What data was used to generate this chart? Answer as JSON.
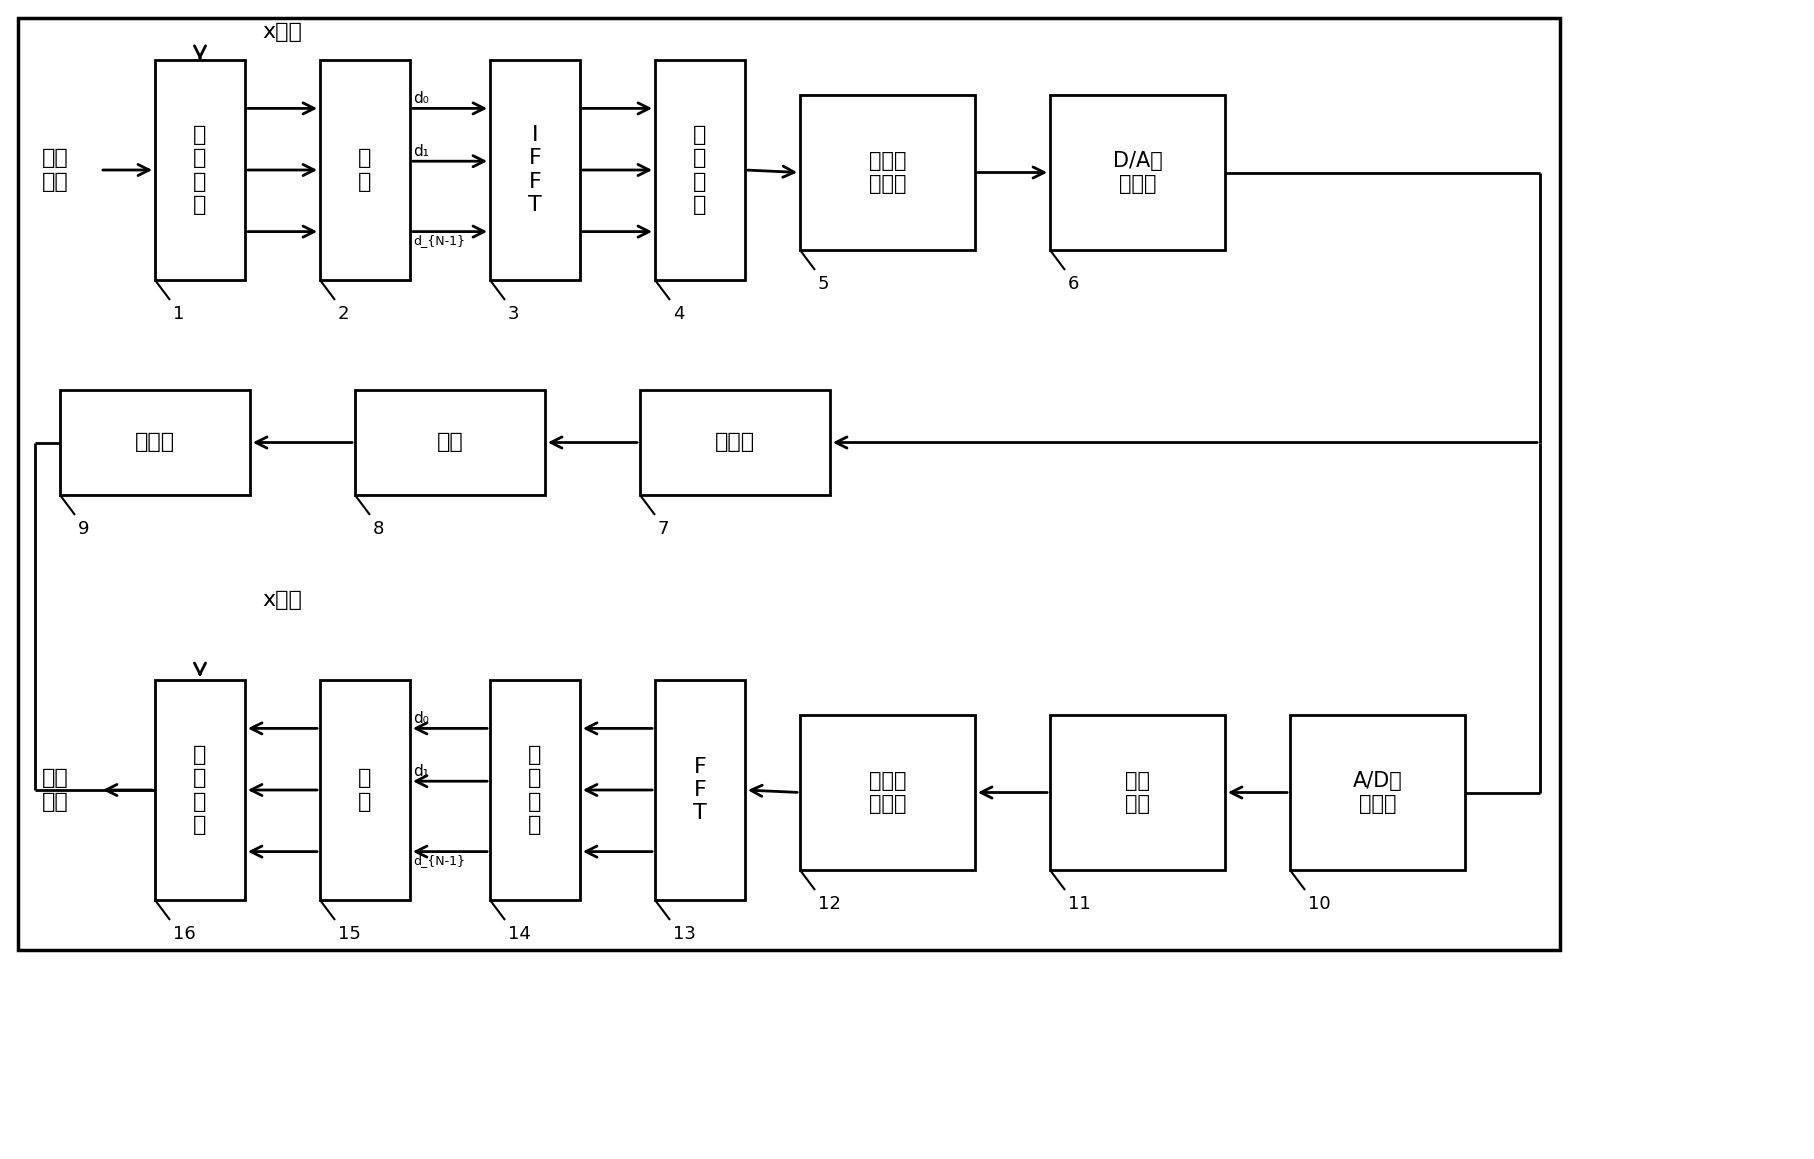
{
  "bg_color": "#ffffff",
  "lc": "#000000",
  "tc": "#000000",
  "lw": 2.0,
  "arrow_ms": 18,
  "font_size_box": 15,
  "font_size_label": 14,
  "font_size_num": 13,
  "font_size_d": 11,
  "top_brace_label": "x比特",
  "bot_brace_label": "x比特",
  "input_label": "输入\n数据",
  "output_label": "输出\n数据",
  "boxes": {
    "b1": {
      "label": "串并转换",
      "num": "1"
    },
    "b2": {
      "label": "映射",
      "num": "2"
    },
    "b3": {
      "label": "IFFT",
      "num": "3"
    },
    "b4": {
      "label": "并串转换",
      "num": "4"
    },
    "b5": {
      "label": "添加保护时隙",
      "num": "5"
    },
    "b6": {
      "label": "D/A低通滤波",
      "num": "6"
    },
    "b7": {
      "label": "上变频",
      "num": "7"
    },
    "b8": {
      "label": "信道",
      "num": "8"
    },
    "b9": {
      "label": "下变频",
      "num": "9"
    },
    "b10": {
      "label": "A/D低通滤波",
      "num": "10"
    },
    "b11": {
      "label": "同步模块",
      "num": "11"
    },
    "b12": {
      "label": "去掉保护时隙",
      "num": "12"
    },
    "b13": {
      "label": "FFT",
      "num": "13"
    },
    "b14": {
      "label": "一阶均衡",
      "num": "14"
    },
    "b15": {
      "label": "映射",
      "num": "15"
    },
    "b16": {
      "label": "并串转换",
      "num": "16"
    }
  }
}
